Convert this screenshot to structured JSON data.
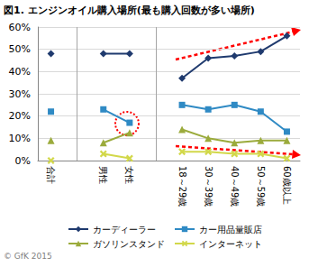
{
  "chart_data": {
    "type": "line",
    "title": "図1. エンジンオイル購入場所(最も購入回数が多い場所)",
    "categories": [
      "合計",
      null,
      "男性",
      "女性",
      null,
      "18～29歳",
      "30～39歳",
      "40～49歳",
      "50～59歳",
      "60歳以上"
    ],
    "series": [
      {
        "name": "カーディーラー",
        "color": "#1f3a6e",
        "marker": "diamond",
        "values": [
          48,
          null,
          48,
          48,
          null,
          37,
          46,
          47,
          49,
          56
        ]
      },
      {
        "name": "カー用品量販店",
        "color": "#2f8ac4",
        "marker": "square",
        "values": [
          22,
          null,
          23,
          17,
          null,
          25,
          23,
          25,
          22,
          13
        ]
      },
      {
        "name": "ガソリンスタンド",
        "color": "#9bab3c",
        "marker": "triangle",
        "values": [
          9,
          null,
          8,
          12.5,
          null,
          14,
          10,
          8,
          9,
          9
        ]
      },
      {
        "name": "インターネット",
        "color": "#d2d84a",
        "marker": "x",
        "values": [
          0,
          null,
          3,
          1,
          null,
          4,
          4,
          3,
          3,
          1
        ]
      }
    ],
    "ylim": [
      0,
      60
    ],
    "yticks": [
      {
        "value": 0,
        "label": "0%"
      },
      {
        "value": 10,
        "label": "10%"
      },
      {
        "value": 20,
        "label": "20%"
      },
      {
        "value": 30,
        "label": "30%"
      },
      {
        "value": 40,
        "label": "40%"
      },
      {
        "value": 50,
        "label": "50%"
      },
      {
        "value": 60,
        "label": "60%"
      }
    ],
    "grid": true,
    "legend": "bottom",
    "annotations": [
      "© GfK 2015"
    ]
  }
}
